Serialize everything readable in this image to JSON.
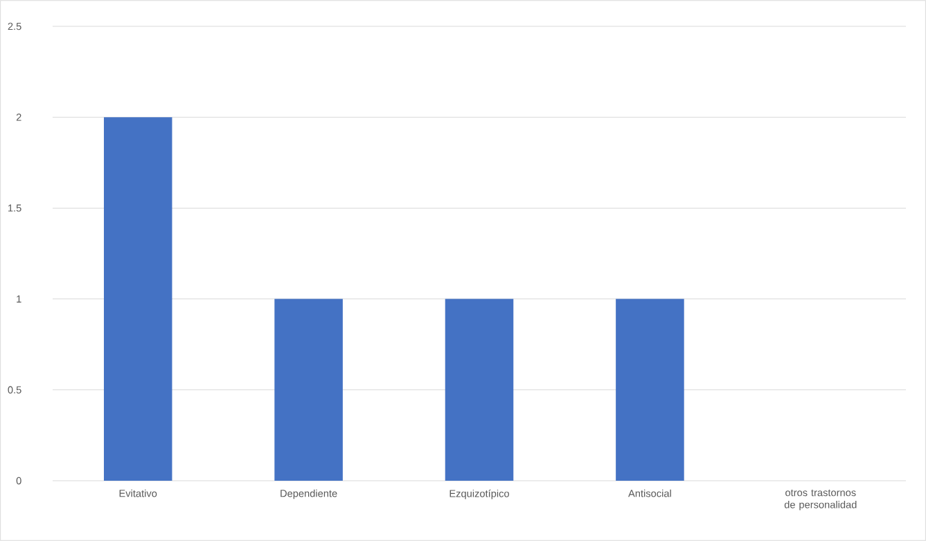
{
  "chart_data": {
    "type": "bar",
    "categories": [
      "Evitativo",
      "Dependiente",
      "Ezquizotípico",
      "Antisocial",
      "otros trastornos de personalidad"
    ],
    "values": [
      2,
      1,
      1,
      1,
      0
    ],
    "color": "#4472c4",
    "ylim": [
      0,
      2.5
    ],
    "yticks": [
      0,
      0.5,
      1,
      1.5,
      2,
      2.5
    ],
    "grid": "y"
  }
}
